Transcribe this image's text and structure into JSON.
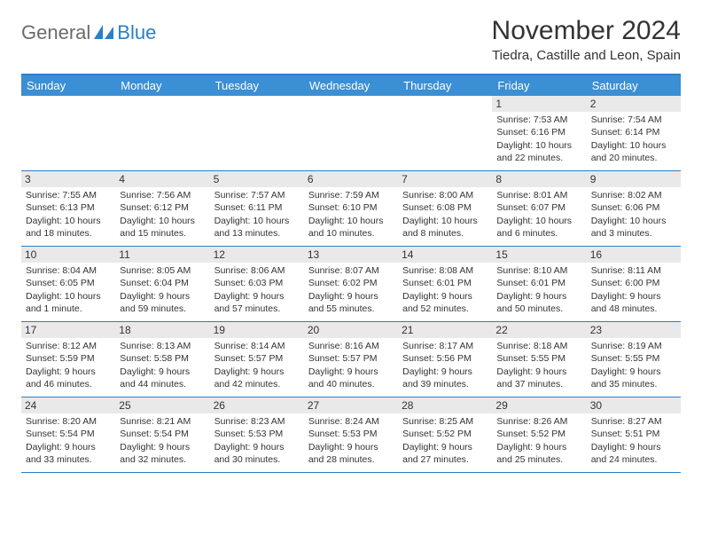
{
  "logo": {
    "text1": "General",
    "text2": "Blue"
  },
  "title": "November 2024",
  "location": "Tiedra, Castille and Leon, Spain",
  "colors": {
    "brand_blue": "#2a7fc9",
    "header_blue": "#3b8fd4",
    "daynum_bg": "#e9e9e9",
    "text": "#333333",
    "logo_gray": "#6b6b6b",
    "bg": "#ffffff"
  },
  "weekdays": [
    "Sunday",
    "Monday",
    "Tuesday",
    "Wednesday",
    "Thursday",
    "Friday",
    "Saturday"
  ],
  "layout": {
    "cols": 7,
    "rows": 5,
    "first_weekday_index": 5
  },
  "days": [
    {
      "n": 1,
      "sr": "7:53 AM",
      "ss": "6:16 PM",
      "dl": "10 hours and 22 minutes."
    },
    {
      "n": 2,
      "sr": "7:54 AM",
      "ss": "6:14 PM",
      "dl": "10 hours and 20 minutes."
    },
    {
      "n": 3,
      "sr": "7:55 AM",
      "ss": "6:13 PM",
      "dl": "10 hours and 18 minutes."
    },
    {
      "n": 4,
      "sr": "7:56 AM",
      "ss": "6:12 PM",
      "dl": "10 hours and 15 minutes."
    },
    {
      "n": 5,
      "sr": "7:57 AM",
      "ss": "6:11 PM",
      "dl": "10 hours and 13 minutes."
    },
    {
      "n": 6,
      "sr": "7:59 AM",
      "ss": "6:10 PM",
      "dl": "10 hours and 10 minutes."
    },
    {
      "n": 7,
      "sr": "8:00 AM",
      "ss": "6:08 PM",
      "dl": "10 hours and 8 minutes."
    },
    {
      "n": 8,
      "sr": "8:01 AM",
      "ss": "6:07 PM",
      "dl": "10 hours and 6 minutes."
    },
    {
      "n": 9,
      "sr": "8:02 AM",
      "ss": "6:06 PM",
      "dl": "10 hours and 3 minutes."
    },
    {
      "n": 10,
      "sr": "8:04 AM",
      "ss": "6:05 PM",
      "dl": "10 hours and 1 minute."
    },
    {
      "n": 11,
      "sr": "8:05 AM",
      "ss": "6:04 PM",
      "dl": "9 hours and 59 minutes."
    },
    {
      "n": 12,
      "sr": "8:06 AM",
      "ss": "6:03 PM",
      "dl": "9 hours and 57 minutes."
    },
    {
      "n": 13,
      "sr": "8:07 AM",
      "ss": "6:02 PM",
      "dl": "9 hours and 55 minutes."
    },
    {
      "n": 14,
      "sr": "8:08 AM",
      "ss": "6:01 PM",
      "dl": "9 hours and 52 minutes."
    },
    {
      "n": 15,
      "sr": "8:10 AM",
      "ss": "6:01 PM",
      "dl": "9 hours and 50 minutes."
    },
    {
      "n": 16,
      "sr": "8:11 AM",
      "ss": "6:00 PM",
      "dl": "9 hours and 48 minutes."
    },
    {
      "n": 17,
      "sr": "8:12 AM",
      "ss": "5:59 PM",
      "dl": "9 hours and 46 minutes."
    },
    {
      "n": 18,
      "sr": "8:13 AM",
      "ss": "5:58 PM",
      "dl": "9 hours and 44 minutes."
    },
    {
      "n": 19,
      "sr": "8:14 AM",
      "ss": "5:57 PM",
      "dl": "9 hours and 42 minutes."
    },
    {
      "n": 20,
      "sr": "8:16 AM",
      "ss": "5:57 PM",
      "dl": "9 hours and 40 minutes."
    },
    {
      "n": 21,
      "sr": "8:17 AM",
      "ss": "5:56 PM",
      "dl": "9 hours and 39 minutes."
    },
    {
      "n": 22,
      "sr": "8:18 AM",
      "ss": "5:55 PM",
      "dl": "9 hours and 37 minutes."
    },
    {
      "n": 23,
      "sr": "8:19 AM",
      "ss": "5:55 PM",
      "dl": "9 hours and 35 minutes."
    },
    {
      "n": 24,
      "sr": "8:20 AM",
      "ss": "5:54 PM",
      "dl": "9 hours and 33 minutes."
    },
    {
      "n": 25,
      "sr": "8:21 AM",
      "ss": "5:54 PM",
      "dl": "9 hours and 32 minutes."
    },
    {
      "n": 26,
      "sr": "8:23 AM",
      "ss": "5:53 PM",
      "dl": "9 hours and 30 minutes."
    },
    {
      "n": 27,
      "sr": "8:24 AM",
      "ss": "5:53 PM",
      "dl": "9 hours and 28 minutes."
    },
    {
      "n": 28,
      "sr": "8:25 AM",
      "ss": "5:52 PM",
      "dl": "9 hours and 27 minutes."
    },
    {
      "n": 29,
      "sr": "8:26 AM",
      "ss": "5:52 PM",
      "dl": "9 hours and 25 minutes."
    },
    {
      "n": 30,
      "sr": "8:27 AM",
      "ss": "5:51 PM",
      "dl": "9 hours and 24 minutes."
    }
  ],
  "labels": {
    "sunrise": "Sunrise:",
    "sunset": "Sunset:",
    "daylight": "Daylight:"
  }
}
